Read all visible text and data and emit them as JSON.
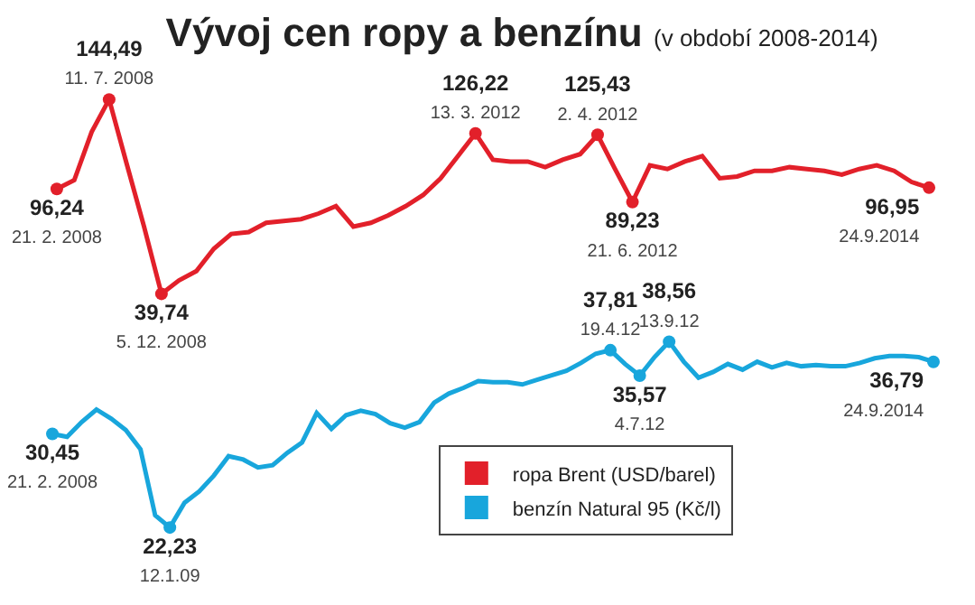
{
  "chart_data": [
    {
      "type": "line",
      "title": "Vývoj cen ropy a benzínu",
      "subtitle": "(v období 2008-2014)",
      "tick_labels": false,
      "legend": "bottom",
      "categories": [
        null,
        null,
        null,
        null,
        null,
        null,
        null,
        null,
        null,
        null,
        null,
        null,
        null,
        null,
        null,
        null,
        null,
        null,
        null,
        null,
        null,
        null,
        null,
        null,
        null,
        null,
        null,
        null,
        null,
        null,
        null,
        null,
        null,
        null,
        null,
        null,
        null,
        null,
        null,
        null,
        null,
        null,
        null,
        null,
        null,
        null,
        null,
        null,
        null,
        null,
        null
      ],
      "series": [
        {
          "name": "ropa Brent (USD/barel)",
          "color": "#e2202a",
          "values": [
            96.24,
            101,
            127,
            144.49,
            110,
            76,
            39.74,
            47,
            52,
            64,
            72,
            73,
            78,
            79,
            80,
            83,
            87,
            76,
            78,
            82,
            87,
            93,
            102,
            114,
            126.22,
            112,
            111,
            111,
            108,
            112,
            115,
            125.43,
            107,
            89.23,
            109,
            107,
            111,
            114,
            102,
            103,
            106,
            106,
            108,
            107,
            106,
            104,
            107,
            109,
            106,
            100,
            96.95
          ],
          "value_labels": [
            "96,24\n21. 2. 2008",
            null,
            null,
            "144,49\n11. 7. 2008",
            null,
            null,
            "39,74\n5. 12. 2008",
            null,
            null,
            null,
            null,
            null,
            null,
            null,
            null,
            null,
            null,
            null,
            null,
            null,
            null,
            null,
            null,
            null,
            "126,22\n13. 3. 2012",
            null,
            null,
            null,
            null,
            null,
            null,
            "125,43\n2. 4. 2012",
            null,
            "89,23\n21. 6. 2012",
            null,
            null,
            null,
            null,
            null,
            null,
            null,
            null,
            null,
            null,
            null,
            null,
            null,
            null,
            null,
            null,
            "96,95\n24.9.2014"
          ]
        }
      ]
    },
    {
      "type": "line",
      "tick_labels": false,
      "legend": "bottom",
      "categories": [
        null,
        null,
        null,
        null,
        null,
        null,
        null,
        null,
        null,
        null,
        null,
        null,
        null,
        null,
        null,
        null,
        null,
        null,
        null,
        null,
        null,
        null,
        null,
        null,
        null,
        null,
        null,
        null,
        null,
        null,
        null,
        null,
        null,
        null,
        null,
        null,
        null,
        null,
        null,
        null,
        null,
        null,
        null,
        null,
        null,
        null,
        null,
        null,
        null,
        null,
        null,
        null,
        null,
        null,
        null,
        null,
        null,
        null,
        null,
        null,
        null
      ],
      "series": [
        {
          "name": "benzín Natural 95 (Kč/l)",
          "color": "#18a6dc",
          "values": [
            30.45,
            30.2,
            31.5,
            32.6,
            31.8,
            30.8,
            29.1,
            23.3,
            22.23,
            24.4,
            25.4,
            26.8,
            28.5,
            28.2,
            27.5,
            27.7,
            28.8,
            29.7,
            32.3,
            30.9,
            32.1,
            32.5,
            32.2,
            31.4,
            31.0,
            31.5,
            33.2,
            34.0,
            34.5,
            35.1,
            35.0,
            35.0,
            34.8,
            35.2,
            35.6,
            36.0,
            36.7,
            37.5,
            37.81,
            36.6,
            35.57,
            37.2,
            38.56,
            36.8,
            35.4,
            35.9,
            36.6,
            36.1,
            36.8,
            36.3,
            36.7,
            36.4,
            36.5,
            36.4,
            36.4,
            36.7,
            37.1,
            37.3,
            37.3,
            37.2,
            36.79
          ],
          "value_labels": [
            "30,45\n21. 2. 2008",
            null,
            null,
            null,
            null,
            null,
            null,
            null,
            "22,23\n12.1.09",
            null,
            null,
            null,
            null,
            null,
            null,
            null,
            null,
            null,
            null,
            null,
            null,
            null,
            null,
            null,
            null,
            null,
            null,
            null,
            null,
            null,
            null,
            null,
            null,
            null,
            null,
            null,
            null,
            null,
            "37,81\n19.4.12",
            null,
            "35,57\n4.7.12",
            null,
            "38,56\n13.9.12",
            null,
            null,
            null,
            null,
            null,
            null,
            null,
            null,
            null,
            null,
            null,
            null,
            null,
            null,
            null,
            null,
            null,
            "36,79\n24.9.2014"
          ]
        }
      ]
    }
  ]
}
